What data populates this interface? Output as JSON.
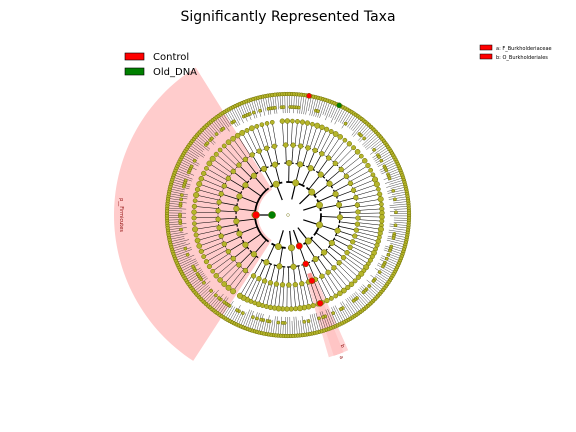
{
  "chart_data": {
    "type": "cladogram",
    "title": "Significantly Represented Taxa",
    "classes": [
      {
        "name": "Control",
        "color": "#ff0000"
      },
      {
        "name": "Old_DNA",
        "color": "#008000"
      }
    ],
    "biomarker_legend": [
      {
        "text": "a: F_Burkholderiaceae",
        "color": "#ff0000"
      },
      {
        "text": "b: O_Burkholderiales",
        "color": "#ff0000"
      }
    ],
    "highlighted_clades": [
      {
        "name": "p__Firmicutes",
        "class": "Control",
        "color": "#ff9999"
      },
      {
        "name": "a",
        "class": "Control",
        "color": "#ff9999"
      },
      {
        "name": "b",
        "class": "Control",
        "color": "#ff9999"
      }
    ],
    "colors": {
      "node": "#b5b52b",
      "node_edge": "#6b6b00",
      "shade": "#ffcccc",
      "shade_dark": "#ff9999"
    }
  }
}
